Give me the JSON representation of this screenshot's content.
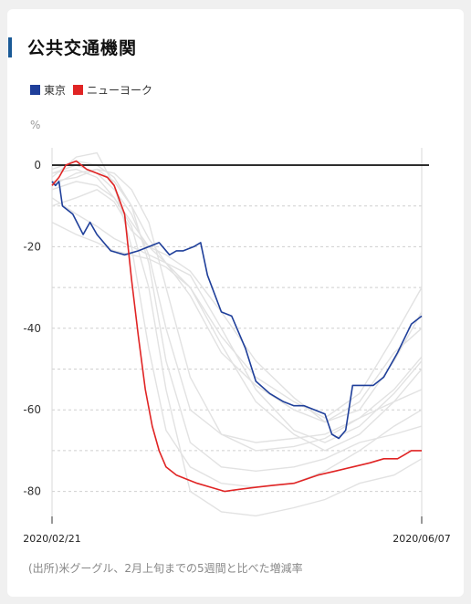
{
  "header": {
    "title": "公共交通機関"
  },
  "note": "(出所)米グーグル、2月上旬までの5週間と比べた増減率",
  "colors": {
    "tokyo": "#1f3f9a",
    "newyork": "#e02424",
    "others": "#e2e2e2",
    "zero": "#111111",
    "grid": "#cfcfcf",
    "accent": "#1a5a96"
  },
  "chart_data": {
    "type": "line",
    "ylabel": "%",
    "ylim": [
      -83,
      5
    ],
    "yticks": [
      0,
      -20,
      -40,
      -60,
      -80
    ],
    "xlim": [
      "2020-02-21",
      "2020-06-07"
    ],
    "xtick_labels": [
      "2020/02/21",
      "2020/06/07"
    ],
    "grid": "dashed horizontal",
    "legend": "top-left",
    "series": [
      {
        "name": "東京",
        "color": "#1f3f9a",
        "x": [
          "2020-02-21",
          "2020-02-22",
          "2020-02-23",
          "2020-02-24",
          "2020-02-27",
          "2020-03-01",
          "2020-03-03",
          "2020-03-05",
          "2020-03-09",
          "2020-03-13",
          "2020-03-17",
          "2020-03-20",
          "2020-03-23",
          "2020-03-26",
          "2020-03-28",
          "2020-03-30",
          "2020-04-02",
          "2020-04-04",
          "2020-04-06",
          "2020-04-10",
          "2020-04-13",
          "2020-04-17",
          "2020-04-20",
          "2020-04-24",
          "2020-04-28",
          "2020-05-01",
          "2020-05-04",
          "2020-05-07",
          "2020-05-10",
          "2020-05-12",
          "2020-05-14",
          "2020-05-16",
          "2020-05-18",
          "2020-05-21",
          "2020-05-24",
          "2020-05-27",
          "2020-05-31",
          "2020-06-04",
          "2020-06-07"
        ],
        "y": [
          -4,
          -5,
          -4,
          -10,
          -12,
          -17,
          -14,
          -17,
          -21,
          -22,
          -21,
          -20,
          -19,
          -22,
          -21,
          -21,
          -20,
          -19,
          -27,
          -36,
          -37,
          -45,
          -53,
          -56,
          -58,
          -59,
          -59,
          -60,
          -61,
          -66,
          -67,
          -65,
          -54,
          -54,
          -54,
          -52,
          -46,
          -39,
          -37
        ]
      },
      {
        "name": "ニューヨーク",
        "color": "#e02424",
        "x": [
          "2020-02-21",
          "2020-02-23",
          "2020-02-25",
          "2020-02-28",
          "2020-03-02",
          "2020-03-05",
          "2020-03-08",
          "2020-03-10",
          "2020-03-13",
          "2020-03-15",
          "2020-03-17",
          "2020-03-19",
          "2020-03-21",
          "2020-03-23",
          "2020-03-25",
          "2020-03-28",
          "2020-03-31",
          "2020-04-03",
          "2020-04-07",
          "2020-04-11",
          "2020-04-15",
          "2020-04-20",
          "2020-04-25",
          "2020-05-01",
          "2020-05-08",
          "2020-05-13",
          "2020-05-18",
          "2020-05-23",
          "2020-05-27",
          "2020-05-31",
          "2020-06-02",
          "2020-06-04",
          "2020-06-07"
        ],
        "y": [
          -5,
          -3,
          0,
          1,
          -1,
          -2,
          -3,
          -5,
          -12,
          -28,
          -42,
          -55,
          -64,
          -70,
          -74,
          -76,
          -77,
          -78,
          -79,
          -80,
          -79.5,
          -79,
          -78.5,
          -78,
          -76,
          -75,
          -74,
          -73,
          -72,
          -72,
          -71,
          -70,
          -70
        ]
      }
    ],
    "background_series": [
      {
        "x": [
          "2020-02-21",
          "2020-02-28",
          "2020-03-05",
          "2020-03-10",
          "2020-03-15",
          "2020-03-20",
          "2020-03-25",
          "2020-04-01",
          "2020-04-10",
          "2020-04-20",
          "2020-05-01",
          "2020-05-10",
          "2020-05-20",
          "2020-05-30",
          "2020-06-07"
        ],
        "y": [
          -3,
          2,
          3,
          -5,
          -20,
          -45,
          -65,
          -74,
          -78,
          -79,
          -78,
          -75,
          -70,
          -64,
          -60
        ]
      },
      {
        "x": [
          "2020-02-21",
          "2020-02-28",
          "2020-03-05",
          "2020-03-10",
          "2020-03-15",
          "2020-03-20",
          "2020-03-25",
          "2020-04-01",
          "2020-04-10",
          "2020-04-20",
          "2020-05-01",
          "2020-05-10",
          "2020-05-20",
          "2020-05-30",
          "2020-06-07"
        ],
        "y": [
          -6,
          -4,
          -5,
          -8,
          -15,
          -30,
          -55,
          -80,
          -85,
          -86,
          -84,
          -82,
          -78,
          -76,
          -72
        ]
      },
      {
        "x": [
          "2020-02-21",
          "2020-02-28",
          "2020-03-05",
          "2020-03-10",
          "2020-03-15",
          "2020-03-20",
          "2020-03-25",
          "2020-04-01",
          "2020-04-10",
          "2020-04-20",
          "2020-05-01",
          "2020-05-10",
          "2020-05-20",
          "2020-05-30",
          "2020-06-07"
        ],
        "y": [
          -1,
          1,
          0,
          -3,
          -10,
          -18,
          -24,
          -30,
          -42,
          -52,
          -58,
          -62,
          -56,
          -42,
          -30
        ]
      },
      {
        "x": [
          "2020-02-21",
          "2020-02-28",
          "2020-03-05",
          "2020-03-10",
          "2020-03-15",
          "2020-03-20",
          "2020-03-25",
          "2020-04-01",
          "2020-04-10",
          "2020-04-20",
          "2020-05-01",
          "2020-05-10",
          "2020-05-20",
          "2020-05-30",
          "2020-06-07"
        ],
        "y": [
          -2,
          -1,
          -3,
          -8,
          -14,
          -20,
          -22,
          -26,
          -36,
          -48,
          -57,
          -63,
          -60,
          -48,
          -36
        ]
      },
      {
        "x": [
          "2020-02-21",
          "2020-02-28",
          "2020-03-05",
          "2020-03-10",
          "2020-03-15",
          "2020-03-20",
          "2020-03-25",
          "2020-04-01",
          "2020-04-10",
          "2020-04-20",
          "2020-05-01",
          "2020-05-10",
          "2020-05-20",
          "2020-05-30",
          "2020-06-07"
        ],
        "y": [
          -8,
          -12,
          -15,
          -18,
          -20,
          -22,
          -24,
          -27,
          -40,
          -55,
          -65,
          -68,
          -64,
          -56,
          -48
        ]
      },
      {
        "x": [
          "2020-02-21",
          "2020-02-28",
          "2020-03-05",
          "2020-03-10",
          "2020-03-15",
          "2020-03-20",
          "2020-03-25",
          "2020-04-01",
          "2020-04-10",
          "2020-04-20",
          "2020-05-01",
          "2020-05-10",
          "2020-05-20",
          "2020-05-30",
          "2020-06-07"
        ],
        "y": [
          -14,
          -17,
          -19,
          -21,
          -22,
          -23,
          -25,
          -30,
          -44,
          -58,
          -66,
          -70,
          -66,
          -58,
          -50
        ]
      },
      {
        "x": [
          "2020-02-21",
          "2020-02-28",
          "2020-03-05",
          "2020-03-10",
          "2020-03-15",
          "2020-03-20",
          "2020-03-25",
          "2020-04-01",
          "2020-04-10",
          "2020-04-20",
          "2020-05-01",
          "2020-05-10",
          "2020-05-20",
          "2020-05-30",
          "2020-06-07"
        ],
        "y": [
          -2,
          0,
          -2,
          -6,
          -12,
          -22,
          -40,
          -60,
          -66,
          -68,
          -67,
          -66,
          -62,
          -58,
          -55
        ]
      },
      {
        "x": [
          "2020-02-21",
          "2020-02-28",
          "2020-03-05",
          "2020-03-10",
          "2020-03-15",
          "2020-03-20",
          "2020-03-25",
          "2020-04-01",
          "2020-04-10",
          "2020-04-20",
          "2020-05-01",
          "2020-05-10",
          "2020-05-20",
          "2020-05-30",
          "2020-06-07"
        ],
        "y": [
          -4,
          -3,
          -1,
          -4,
          -10,
          -24,
          -48,
          -68,
          -74,
          -75,
          -74,
          -72,
          -68,
          -66,
          -64
        ]
      },
      {
        "x": [
          "2020-02-21",
          "2020-02-28",
          "2020-03-05",
          "2020-03-10",
          "2020-03-15",
          "2020-03-20",
          "2020-03-25",
          "2020-04-01",
          "2020-04-10",
          "2020-04-20",
          "2020-05-01",
          "2020-05-10",
          "2020-05-20",
          "2020-05-30",
          "2020-06-07"
        ],
        "y": [
          -10,
          -8,
          -6,
          -9,
          -16,
          -20,
          -24,
          -32,
          -46,
          -54,
          -60,
          -63,
          -58,
          -46,
          -40
        ]
      },
      {
        "x": [
          "2020-02-21",
          "2020-02-28",
          "2020-03-05",
          "2020-03-10",
          "2020-03-15",
          "2020-03-20",
          "2020-03-25",
          "2020-04-01",
          "2020-04-10",
          "2020-04-20",
          "2020-05-01",
          "2020-05-10",
          "2020-05-20",
          "2020-05-30",
          "2020-06-07"
        ],
        "y": [
          -5,
          -2,
          -1,
          -2,
          -6,
          -14,
          -30,
          -52,
          -66,
          -70,
          -69,
          -67,
          -62,
          -55,
          -47
        ]
      }
    ]
  }
}
